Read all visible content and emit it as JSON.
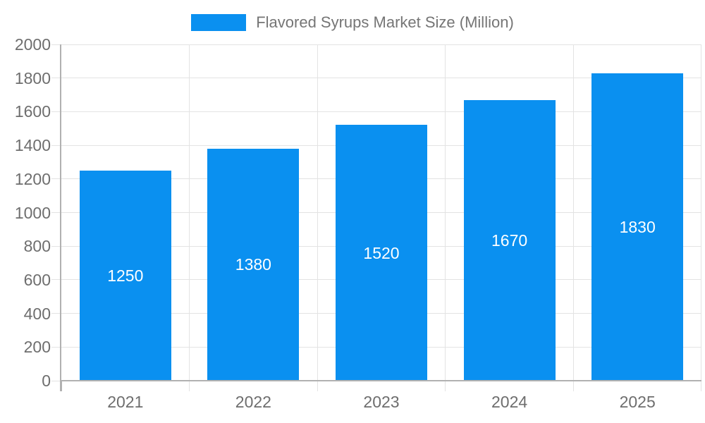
{
  "legend": {
    "label": "Flavored Syrups Market Size (Million)"
  },
  "chart_data": {
    "type": "bar",
    "title": "Flavored Syrups Market Size (Million)",
    "series_name": "Flavored Syrups Market Size (Million)",
    "categories": [
      "2021",
      "2022",
      "2023",
      "2024",
      "2025"
    ],
    "values": [
      1250,
      1380,
      1520,
      1670,
      1830
    ],
    "xlabel": "",
    "ylabel": "",
    "ylim": [
      0,
      2000
    ],
    "ytick_step": 200,
    "ytick_labels": [
      "0",
      "200",
      "400",
      "600",
      "800",
      "1000",
      "1200",
      "1400",
      "1600",
      "1800",
      "2000"
    ],
    "grid": true,
    "legend_position": "top-center",
    "value_labels": "inside-centered",
    "colors": {
      "bar": "#0a90f0",
      "grid": "#e3e3e3",
      "axis": "#b1b1b1",
      "tick": "#e3e3e3",
      "tick_label": "#6e6e6e",
      "legend_text": "#757575",
      "bar_label": "#ffffff",
      "background": "#ffffff"
    }
  }
}
